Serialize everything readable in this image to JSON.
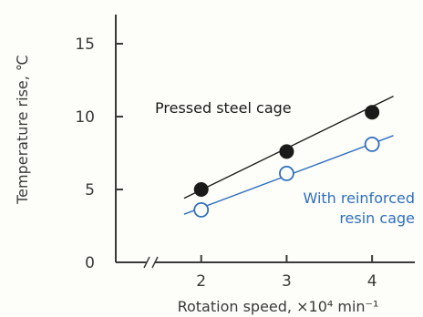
{
  "chart_data": {
    "type": "line",
    "title": "",
    "xlabel": "Rotation speed, ×10⁴ min⁻¹",
    "ylabel": "Temperature rise, ℃",
    "xlim": [
      1,
      4.5
    ],
    "ylim": [
      0,
      17
    ],
    "x_ticks": [
      2,
      3,
      4
    ],
    "y_ticks": [
      0,
      5,
      10,
      15
    ],
    "x_axis_break": true,
    "grid": false,
    "colors": {
      "axis": "#3a3a3a",
      "steel": "#1a1a1a",
      "resin": "#2f6fc0"
    },
    "series": [
      {
        "name": "Pressed steel cage",
        "label_lines": [
          "Pressed steel cage"
        ],
        "marker": "filled-circle",
        "x": [
          2,
          3,
          4
        ],
        "y": [
          5.0,
          7.6,
          10.3
        ],
        "fit_line": {
          "from": [
            1.8,
            4.4
          ],
          "to": [
            4.25,
            11.4
          ]
        }
      },
      {
        "name": "With reinforced resin cage",
        "label_lines": [
          "With reinforced",
          "resin cage"
        ],
        "marker": "open-circle",
        "x": [
          2,
          3,
          4
        ],
        "y": [
          3.6,
          6.1,
          8.1
        ],
        "fit_line": {
          "from": [
            1.8,
            3.3
          ],
          "to": [
            4.25,
            8.7
          ]
        }
      }
    ]
  }
}
